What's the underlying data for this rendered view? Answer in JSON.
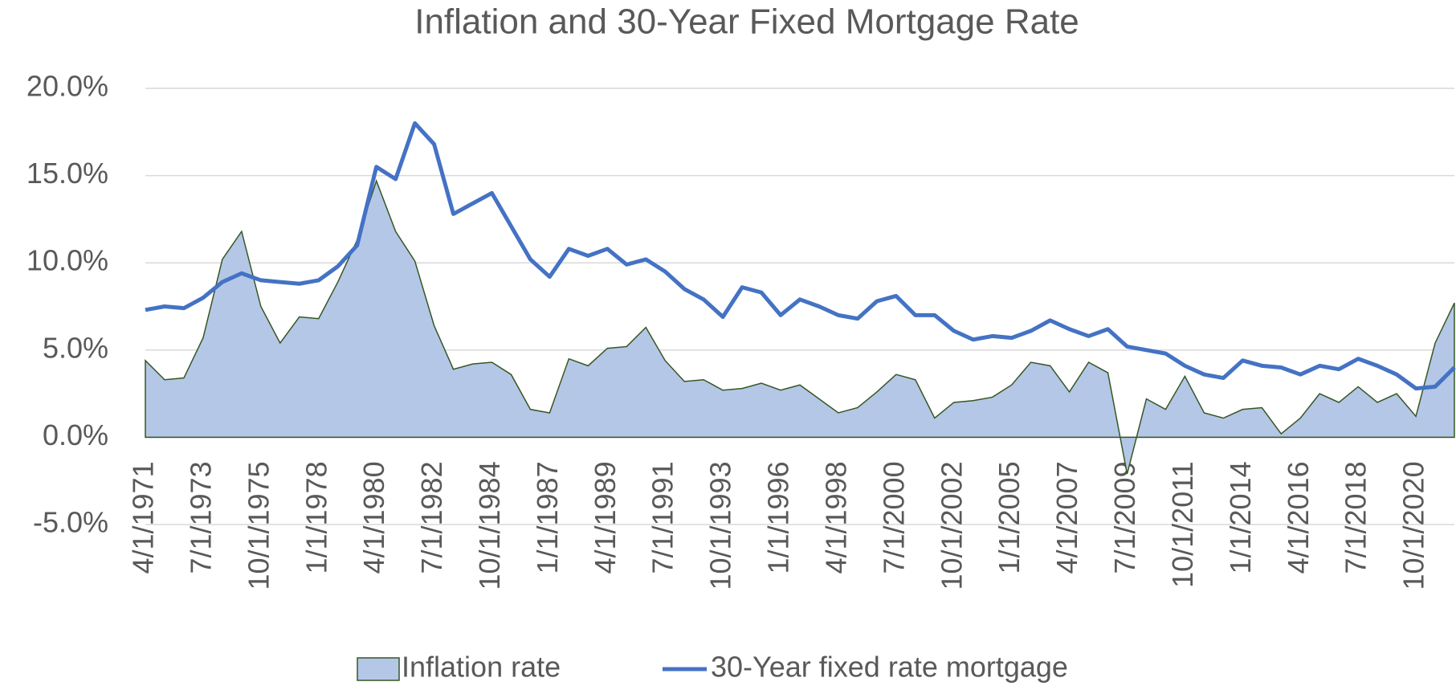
{
  "chart_data": {
    "type": "area-line",
    "title": "Inflation and 30-Year Fixed Mortgage Rate",
    "categories": [
      "4/1/1971",
      null,
      null,
      "7/1/1973",
      null,
      null,
      "10/1/1975",
      null,
      null,
      "1/1/1978",
      null,
      null,
      "4/1/1980",
      null,
      null,
      "7/1/1982",
      null,
      null,
      "10/1/1984",
      null,
      null,
      "1/1/1987",
      null,
      null,
      "4/1/1989",
      null,
      null,
      "7/1/1991",
      null,
      null,
      "10/1/1993",
      null,
      null,
      "1/1/1996",
      null,
      null,
      "4/1/1998",
      null,
      null,
      "7/1/2000",
      null,
      null,
      "10/1/2002",
      null,
      null,
      "1/1/2005",
      null,
      null,
      "4/1/2007",
      null,
      null,
      "7/1/2009",
      null,
      null,
      "10/1/2011",
      null,
      null,
      "1/1/2014",
      null,
      null,
      "4/1/2016",
      null,
      null,
      "7/1/2018",
      null,
      null,
      "10/1/2020",
      null,
      null
    ],
    "series": [
      {
        "name": "Inflation rate",
        "color": "#b4c7e7",
        "stroke": "#375623",
        "values": [
          4.4,
          3.3,
          3.4,
          5.7,
          10.2,
          11.8,
          7.5,
          5.4,
          6.9,
          6.8,
          8.9,
          11.3,
          14.7,
          11.8,
          10.1,
          6.4,
          3.9,
          4.2,
          4.3,
          3.6,
          1.6,
          1.4,
          4.5,
          4.1,
          5.1,
          5.2,
          6.3,
          4.4,
          3.2,
          3.3,
          2.7,
          2.8,
          3.1,
          2.7,
          3.0,
          2.2,
          1.4,
          1.7,
          2.6,
          3.6,
          3.3,
          1.1,
          2.0,
          2.1,
          2.3,
          3.0,
          4.3,
          4.1,
          2.6,
          4.3,
          3.7,
          -2.1,
          2.2,
          1.6,
          3.5,
          1.4,
          1.1,
          1.6,
          1.7,
          0.2,
          1.1,
          2.5,
          2.0,
          2.9,
          2.0,
          2.5,
          1.2,
          5.4,
          7.7
        ]
      },
      {
        "name": "30-Year fixed rate mortgage",
        "color": "#4472c4",
        "values": [
          7.3,
          7.5,
          7.4,
          8.0,
          8.9,
          9.4,
          9.0,
          8.9,
          8.8,
          9.0,
          9.8,
          11.0,
          15.5,
          14.8,
          18.0,
          16.8,
          12.8,
          13.4,
          14.0,
          12.1,
          10.2,
          9.2,
          10.8,
          10.4,
          10.8,
          9.9,
          10.2,
          9.5,
          8.5,
          7.9,
          6.9,
          8.6,
          8.3,
          7.0,
          7.9,
          7.5,
          7.0,
          6.8,
          7.8,
          8.1,
          7.0,
          7.0,
          6.1,
          5.6,
          5.8,
          5.7,
          6.1,
          6.7,
          6.2,
          5.8,
          6.2,
          5.2,
          5.0,
          4.8,
          4.1,
          3.6,
          3.4,
          4.4,
          4.1,
          4.0,
          3.6,
          4.1,
          3.9,
          4.5,
          4.1,
          3.6,
          2.8,
          2.9,
          4.0
        ]
      }
    ],
    "ylim": [
      -5,
      20
    ],
    "yticks": [
      {
        "value": -5,
        "label": "-5.0%"
      },
      {
        "value": 0,
        "label": "0.0%"
      },
      {
        "value": 5,
        "label": "5.0%"
      },
      {
        "value": 10,
        "label": "10.0%"
      },
      {
        "value": 15,
        "label": "15.0%"
      },
      {
        "value": 20,
        "label": "20.0%"
      }
    ],
    "grid": true,
    "legend": "bottom"
  }
}
